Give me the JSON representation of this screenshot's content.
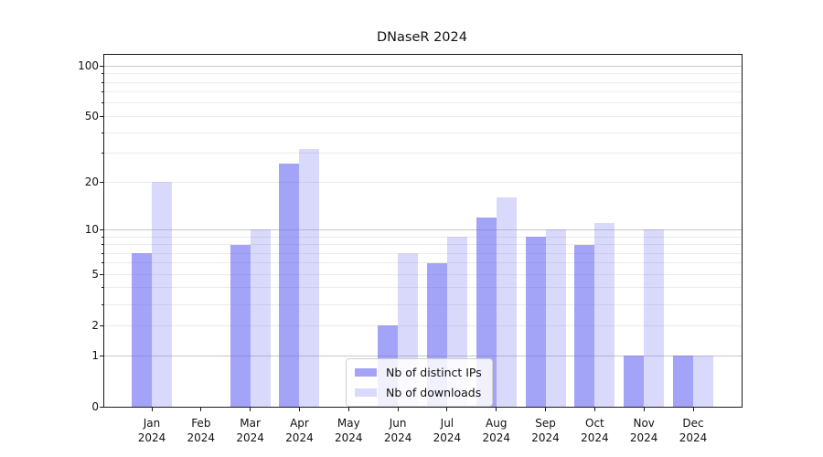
{
  "title": "DNaseR 2024",
  "chart_data": {
    "type": "bar",
    "title": "DNaseR 2024",
    "categories": [
      "Jan 2024",
      "Feb 2024",
      "Mar 2024",
      "Apr 2024",
      "May 2024",
      "Jun 2024",
      "Jul 2024",
      "Aug 2024",
      "Sep 2024",
      "Oct 2024",
      "Nov 2024",
      "Dec 2024"
    ],
    "months": [
      "Jan",
      "Feb",
      "Mar",
      "Apr",
      "May",
      "Jun",
      "Jul",
      "Aug",
      "Sep",
      "Oct",
      "Nov",
      "Dec"
    ],
    "year": "2024",
    "series": [
      {
        "name": "Nb of distinct IPs",
        "color": "rgba(106,106,243,0.62)",
        "values": [
          7,
          0,
          8,
          26,
          0,
          2,
          6,
          12,
          9,
          8,
          1,
          1
        ]
      },
      {
        "name": "Nb of downloads",
        "color": "rgba(128,128,246,0.30)",
        "values": [
          20,
          0,
          10,
          32,
          0,
          7,
          9,
          16,
          10,
          11,
          10,
          1
        ]
      }
    ],
    "xlabel": "",
    "ylabel": "",
    "yscale": "log1p",
    "ylim": [
      0,
      116
    ],
    "y_tick_labels": [
      0,
      1,
      2,
      5,
      10,
      20,
      50,
      100
    ],
    "y_major_gridlines": [
      1,
      10,
      100
    ],
    "y_minor_gridlines": [
      2,
      3,
      4,
      5,
      6,
      7,
      8,
      9,
      20,
      30,
      40,
      50,
      60,
      70,
      80,
      90
    ],
    "y_minor_ticks": [
      3,
      4,
      6,
      7,
      8,
      9,
      30,
      40,
      60,
      70,
      80,
      90
    ],
    "grid": true,
    "legend_position": "lower center"
  },
  "colors": {
    "axis": "#1a1a1a",
    "text": "#111111",
    "grid_minor": "#ebebeb",
    "grid_major": "#c7c7c7",
    "legend_border": "#cfcfcf",
    "legend_bg": "rgba(255,255,255,0.85)"
  }
}
